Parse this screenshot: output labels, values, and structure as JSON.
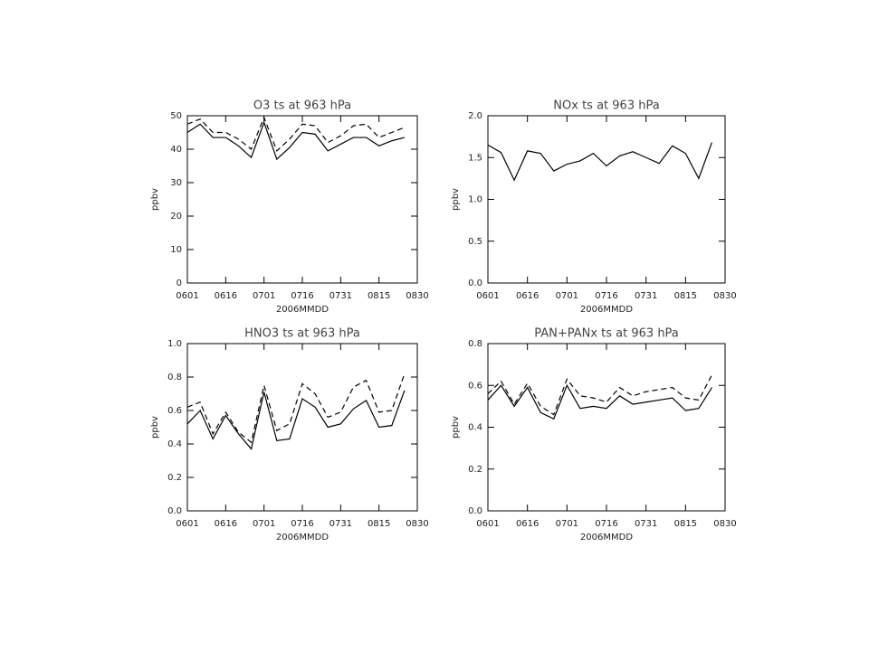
{
  "chart_data": [
    {
      "type": "line",
      "title": "O3 ts at  963 hPa",
      "xlabel": "2006MMDD",
      "ylabel": "ppbv",
      "x": [
        0,
        5,
        10,
        15,
        20,
        25,
        30,
        35,
        40,
        45,
        50,
        55,
        60,
        65,
        70,
        75,
        80,
        85
      ],
      "xlim": [
        0,
        90
      ],
      "xticks": [
        {
          "value": 0,
          "label": "0601"
        },
        {
          "value": 15,
          "label": "0616"
        },
        {
          "value": 30,
          "label": "0701"
        },
        {
          "value": 45,
          "label": "0716"
        },
        {
          "value": 60,
          "label": "0731"
        },
        {
          "value": 75,
          "label": "0815"
        },
        {
          "value": 90,
          "label": "0830"
        }
      ],
      "ylim": [
        0,
        50
      ],
      "yticks": [
        0,
        10,
        20,
        30,
        40,
        50
      ],
      "series": [
        {
          "color": "#000000",
          "dashed": false,
          "values": [
            45,
            47.5,
            43.5,
            43.5,
            41,
            37.5,
            48,
            37,
            40.5,
            45,
            44.5,
            39.5,
            41.5,
            43.5,
            43.5,
            41,
            42.5,
            43.5
          ]
        },
        {
          "color": "#000000",
          "dashed": true,
          "values": [
            47.5,
            49,
            45,
            45,
            43,
            40,
            49.5,
            39.5,
            43,
            47.5,
            47,
            42,
            44,
            47,
            47.5,
            43.5,
            45,
            46.5
          ]
        }
      ]
    },
    {
      "type": "line",
      "title": "NOx ts at  963 hPa",
      "xlabel": "2006MMDD",
      "ylabel": "ppbv",
      "x": [
        0,
        5,
        10,
        15,
        20,
        25,
        30,
        35,
        40,
        45,
        50,
        55,
        60,
        65,
        70,
        75,
        80,
        85
      ],
      "xlim": [
        0,
        90
      ],
      "xticks": [
        {
          "value": 0,
          "label": "0601"
        },
        {
          "value": 15,
          "label": "0616"
        },
        {
          "value": 30,
          "label": "0701"
        },
        {
          "value": 45,
          "label": "0716"
        },
        {
          "value": 60,
          "label": "0731"
        },
        {
          "value": 75,
          "label": "0815"
        },
        {
          "value": 90,
          "label": "0830"
        }
      ],
      "ylim": [
        0,
        2
      ],
      "yticks": [
        {
          "value": 0,
          "label": "0.0"
        },
        0.5,
        {
          "value": 1,
          "label": "1.0"
        },
        1.5,
        {
          "value": 2,
          "label": "2.0"
        }
      ],
      "series": [
        {
          "color": "#000000",
          "dashed": false,
          "values": [
            1.65,
            1.56,
            1.23,
            1.58,
            1.55,
            1.34,
            1.42,
            1.46,
            1.55,
            1.4,
            1.52,
            1.57,
            1.5,
            1.43,
            1.64,
            1.55,
            1.25,
            1.68
          ]
        }
      ]
    },
    {
      "type": "line",
      "title": "HNO3 ts at  963 hPa",
      "xlabel": "2006MMDD",
      "ylabel": "ppbv",
      "x": [
        0,
        5,
        10,
        15,
        20,
        25,
        30,
        35,
        40,
        45,
        50,
        55,
        60,
        65,
        70,
        75,
        80,
        85
      ],
      "xlim": [
        0,
        90
      ],
      "xticks": [
        {
          "value": 0,
          "label": "0601"
        },
        {
          "value": 15,
          "label": "0616"
        },
        {
          "value": 30,
          "label": "0701"
        },
        {
          "value": 45,
          "label": "0716"
        },
        {
          "value": 60,
          "label": "0731"
        },
        {
          "value": 75,
          "label": "0815"
        },
        {
          "value": 90,
          "label": "0830"
        }
      ],
      "ylim": [
        0,
        1
      ],
      "yticks": [
        {
          "value": 0,
          "label": "0.0"
        },
        0.2,
        0.4,
        0.6,
        0.8,
        {
          "value": 1,
          "label": "1.0"
        }
      ],
      "series": [
        {
          "color": "#000000",
          "dashed": false,
          "values": [
            0.52,
            0.6,
            0.43,
            0.57,
            0.46,
            0.37,
            0.71,
            0.42,
            0.43,
            0.67,
            0.62,
            0.5,
            0.52,
            0.61,
            0.66,
            0.5,
            0.51,
            0.72
          ]
        },
        {
          "color": "#000000",
          "dashed": true,
          "values": [
            0.62,
            0.65,
            0.46,
            0.59,
            0.47,
            0.41,
            0.75,
            0.48,
            0.52,
            0.76,
            0.7,
            0.56,
            0.59,
            0.74,
            0.78,
            0.59,
            0.6,
            0.82
          ]
        }
      ]
    },
    {
      "type": "line",
      "title": "PAN+PANx ts at  963 hPa",
      "xlabel": "2006MMDD",
      "ylabel": "ppbv",
      "x": [
        0,
        5,
        10,
        15,
        20,
        25,
        30,
        35,
        40,
        45,
        50,
        55,
        60,
        65,
        70,
        75,
        80,
        85
      ],
      "xlim": [
        0,
        90
      ],
      "xticks": [
        {
          "value": 0,
          "label": "0601"
        },
        {
          "value": 15,
          "label": "0616"
        },
        {
          "value": 30,
          "label": "0701"
        },
        {
          "value": 45,
          "label": "0716"
        },
        {
          "value": 60,
          "label": "0731"
        },
        {
          "value": 75,
          "label": "0815"
        },
        {
          "value": 90,
          "label": "0830"
        }
      ],
      "ylim": [
        0,
        0.8
      ],
      "yticks": [
        {
          "value": 0,
          "label": "0.0"
        },
        0.2,
        0.4,
        0.6,
        0.8
      ],
      "series": [
        {
          "color": "#000000",
          "dashed": false,
          "values": [
            0.53,
            0.6,
            0.5,
            0.59,
            0.47,
            0.44,
            0.6,
            0.49,
            0.5,
            0.49,
            0.55,
            0.51,
            0.52,
            0.53,
            0.54,
            0.48,
            0.49,
            0.59
          ]
        },
        {
          "color": "#000000",
          "dashed": true,
          "values": [
            0.56,
            0.62,
            0.51,
            0.61,
            0.5,
            0.46,
            0.63,
            0.55,
            0.54,
            0.52,
            0.59,
            0.55,
            0.57,
            0.58,
            0.59,
            0.54,
            0.53,
            0.65
          ]
        }
      ]
    }
  ]
}
